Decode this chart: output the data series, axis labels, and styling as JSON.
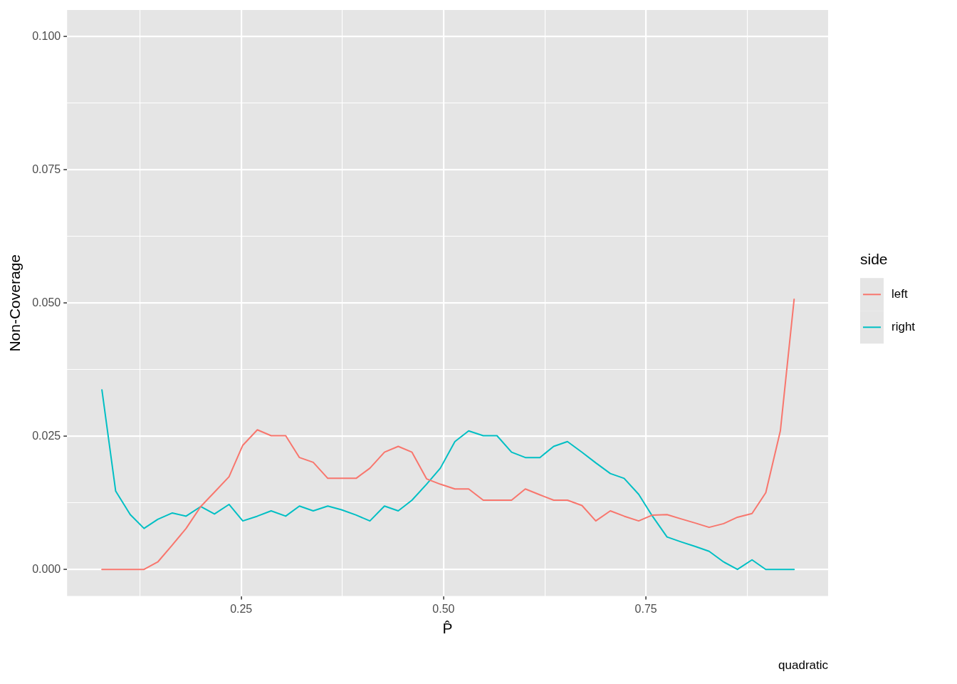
{
  "chart_data": {
    "type": "line",
    "xlabel": "P̂",
    "ylabel": "Non-Coverage",
    "legend_title": "side",
    "annotations": [
      "quadratic"
    ],
    "xlim": [
      0.035,
      0.975
    ],
    "ylim": [
      -0.005,
      0.105
    ],
    "xticks": [
      {
        "value": 0.125,
        "label": null
      },
      {
        "value": 0.25,
        "label": "0.25"
      },
      {
        "value": 0.375,
        "label": null
      },
      {
        "value": 0.5,
        "label": "0.50"
      },
      {
        "value": 0.625,
        "label": null
      },
      {
        "value": 0.75,
        "label": "0.75"
      },
      {
        "value": 0.875,
        "label": null
      }
    ],
    "yticks": [
      {
        "value": 0,
        "label": "0.000"
      },
      {
        "value": 0.0125,
        "label": null
      },
      {
        "value": 0.025,
        "label": "0.025"
      },
      {
        "value": 0.0375,
        "label": null
      },
      {
        "value": 0.05,
        "label": "0.050"
      },
      {
        "value": 0.0625,
        "label": null
      },
      {
        "value": 0.075,
        "label": "0.075"
      },
      {
        "value": 0.0875,
        "label": null
      },
      {
        "value": 0.1,
        "label": "0.100"
      }
    ],
    "x": [
      0.078,
      0.095,
      0.113,
      0.13,
      0.147,
      0.165,
      0.182,
      0.2,
      0.217,
      0.235,
      0.252,
      0.27,
      0.287,
      0.305,
      0.322,
      0.339,
      0.357,
      0.374,
      0.392,
      0.409,
      0.427,
      0.444,
      0.461,
      0.479,
      0.496,
      0.514,
      0.531,
      0.549,
      0.566,
      0.584,
      0.601,
      0.619,
      0.636,
      0.653,
      0.671,
      0.688,
      0.706,
      0.723,
      0.741,
      0.758,
      0.776,
      0.793,
      0.811,
      0.828,
      0.846,
      0.863,
      0.881,
      0.898,
      0.916,
      0.933
    ],
    "series": [
      {
        "name": "left",
        "color": "#f8766d",
        "values": [
          0,
          0,
          0,
          0,
          0.0014,
          0.0046,
          0.0077,
          0.0118,
          0.0145,
          0.0174,
          0.0233,
          0.0262,
          0.0251,
          0.0251,
          0.021,
          0.0201,
          0.0171,
          0.0171,
          0.0171,
          0.019,
          0.022,
          0.0231,
          0.022,
          0.017,
          0.016,
          0.0151,
          0.0151,
          0.013,
          0.013,
          0.013,
          0.0151,
          0.014,
          0.013,
          0.013,
          0.012,
          0.0091,
          0.011,
          0.01,
          0.0091,
          0.0102,
          0.0103,
          0.0095,
          0.0087,
          0.0079,
          0.0086,
          0.0098,
          0.0105,
          0.0144,
          0.026,
          0.0507
        ]
      },
      {
        "name": "right",
        "color": "#00bfc4",
        "values": [
          0.0337,
          0.0147,
          0.0103,
          0.0077,
          0.0094,
          0.0106,
          0.01,
          0.0118,
          0.0104,
          0.0122,
          0.0091,
          0.01,
          0.011,
          0.01,
          0.0119,
          0.011,
          0.0119,
          0.0112,
          0.0102,
          0.0091,
          0.0119,
          0.011,
          0.013,
          0.016,
          0.019,
          0.024,
          0.026,
          0.0251,
          0.0251,
          0.022,
          0.021,
          0.021,
          0.0231,
          0.024,
          0.022,
          0.02,
          0.018,
          0.0171,
          0.0141,
          0.01,
          0.0061,
          0.0052,
          0.0043,
          0.0034,
          0.0014,
          0,
          0.0018,
          0,
          0,
          0
        ]
      }
    ],
    "grid": true,
    "legend": "right",
    "marker": "none",
    "line_style": "solid"
  }
}
